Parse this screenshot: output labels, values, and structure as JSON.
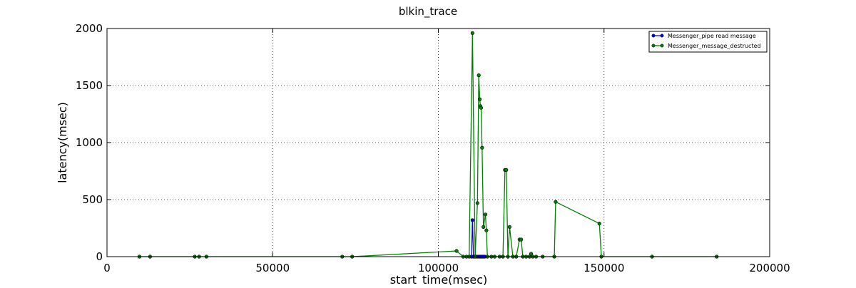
{
  "chart_data": {
    "type": "line",
    "title": "blkin_trace",
    "xlabel": "start_time(msec)",
    "ylabel": "latency(msec)",
    "xlim": [
      0,
      200000
    ],
    "ylim": [
      0,
      2000
    ],
    "x_ticks": [
      0,
      50000,
      100000,
      150000,
      200000
    ],
    "y_ticks": [
      0,
      500,
      1000,
      1500,
      2000
    ],
    "x_tick_labels": [
      "0",
      "50000",
      "100000",
      "150000",
      "200000"
    ],
    "y_tick_labels": [
      "0",
      "500",
      "1000",
      "1500",
      "2000"
    ],
    "grid": true,
    "legend_position": "top-right",
    "series": [
      {
        "name": "Messenger_pipe read message",
        "color": "#0000ff",
        "x": [
          110000,
          110300,
          110600,
          111000,
          111500,
          112000,
          112500,
          113000,
          113500,
          114000
        ],
        "y": [
          0,
          320,
          0,
          0,
          0,
          0,
          0,
          0,
          0,
          0
        ]
      },
      {
        "name": "Messenger_message_destructed",
        "color": "#008000",
        "x": [
          9800,
          13000,
          26500,
          27800,
          30000,
          71000,
          74000,
          105500,
          107500,
          108500,
          109300,
          110300,
          111100,
          111800,
          112200,
          112500,
          112700,
          112900,
          113200,
          113600,
          114200,
          114500,
          114800,
          116000,
          117000,
          118500,
          119500,
          120100,
          120500,
          121000,
          121500,
          122500,
          123500,
          124500,
          125000,
          125500,
          126500,
          127500,
          128000,
          128500,
          129500,
          131500,
          135000,
          135400,
          148600,
          149200,
          164500,
          184000
        ],
        "y": [
          0,
          0,
          0,
          0,
          0,
          0,
          0,
          50,
          0,
          0,
          0,
          1960,
          0,
          470,
          1590,
          1380,
          1320,
          1305,
          955,
          260,
          370,
          230,
          0,
          0,
          0,
          0,
          0,
          760,
          760,
          0,
          260,
          0,
          0,
          150,
          150,
          0,
          0,
          0,
          25,
          0,
          0,
          0,
          0,
          480,
          290,
          0,
          0,
          0
        ]
      }
    ]
  }
}
